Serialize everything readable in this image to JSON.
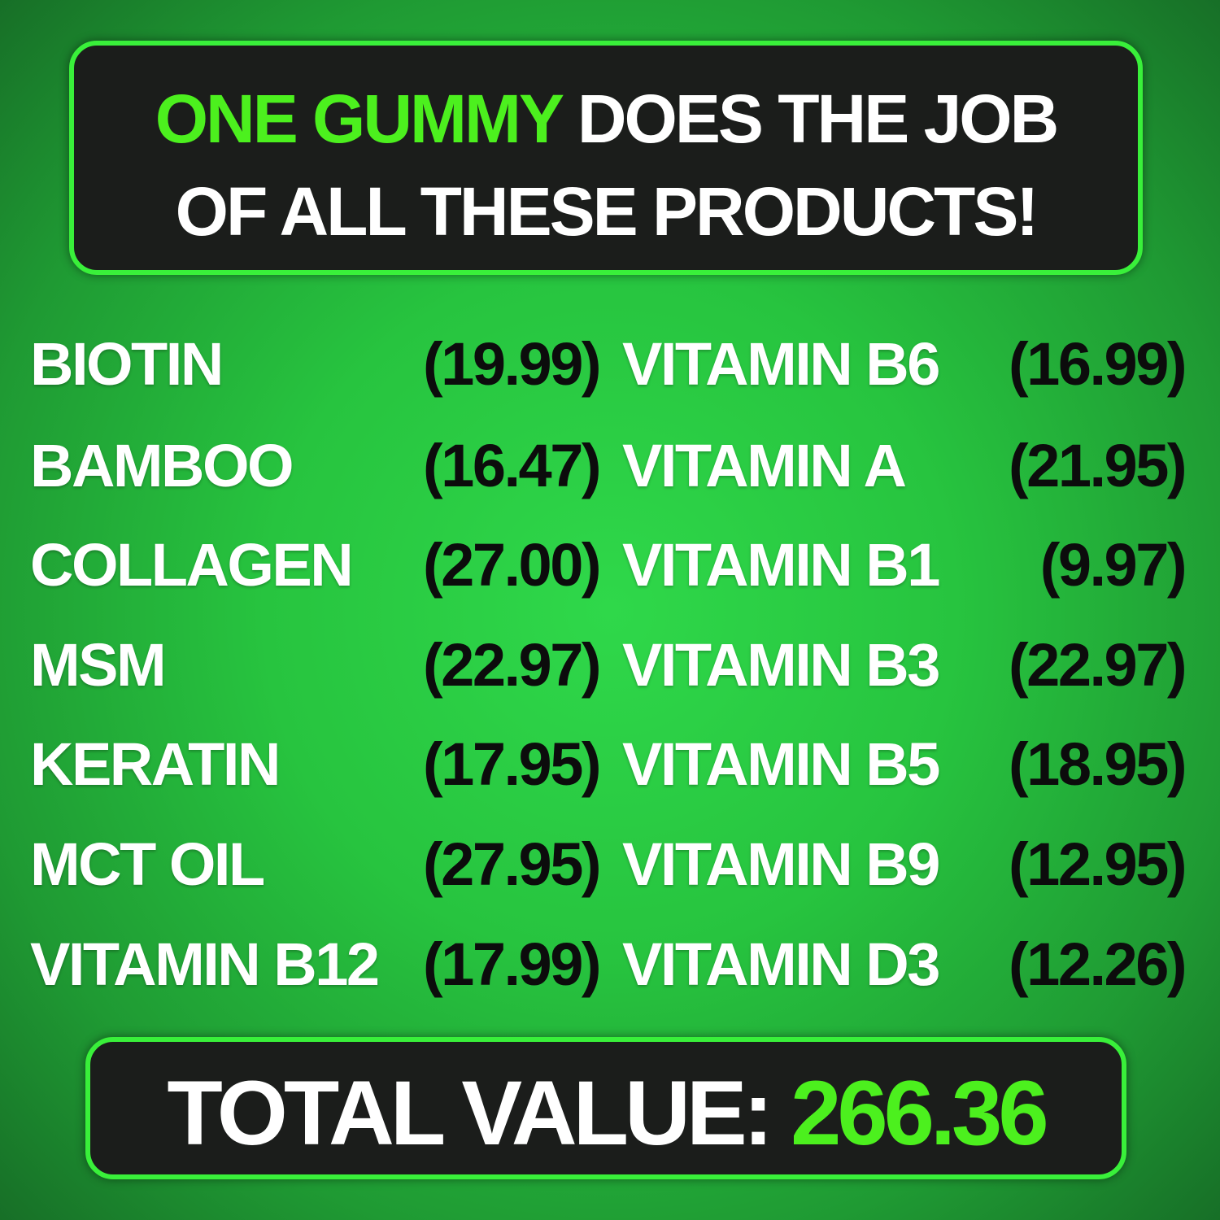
{
  "header": {
    "accent_text": "ONE GUMMY",
    "line1_rest": " DOES THE JOB",
    "line2": "OF ALL THESE PRODUCTS!"
  },
  "products": [
    {
      "left_name": "BIOTIN",
      "left_price": "(19.99)",
      "right_name": "VITAMIN B6",
      "right_price": "(16.99)"
    },
    {
      "left_name": "BAMBOO",
      "left_price": "(16.47)",
      "right_name": "VITAMIN A",
      "right_price": "(21.95)"
    },
    {
      "left_name": "COLLAGEN",
      "left_price": "(27.00)",
      "right_name": "VITAMIN B1",
      "right_price": "(9.97)"
    },
    {
      "left_name": "MSM",
      "left_price": "(22.97)",
      "right_name": "VITAMIN B3",
      "right_price": "(22.97)"
    },
    {
      "left_name": "KERATIN",
      "left_price": "(17.95)",
      "right_name": "VITAMIN B5",
      "right_price": "(18.95)"
    },
    {
      "left_name": "MCT OIL",
      "left_price": "(27.95)",
      "right_name": "VITAMIN B9",
      "right_price": "(12.95)"
    },
    {
      "left_name": "VITAMIN B12",
      "left_price": "(17.99)",
      "right_name": "VITAMIN D3",
      "right_price": "(12.26)"
    }
  ],
  "total": {
    "label": "TOTAL VALUE: ",
    "value": "266.36"
  },
  "colors": {
    "accent": "#4cf01e",
    "border": "#39f03a",
    "panel": "#1b1d1b"
  }
}
